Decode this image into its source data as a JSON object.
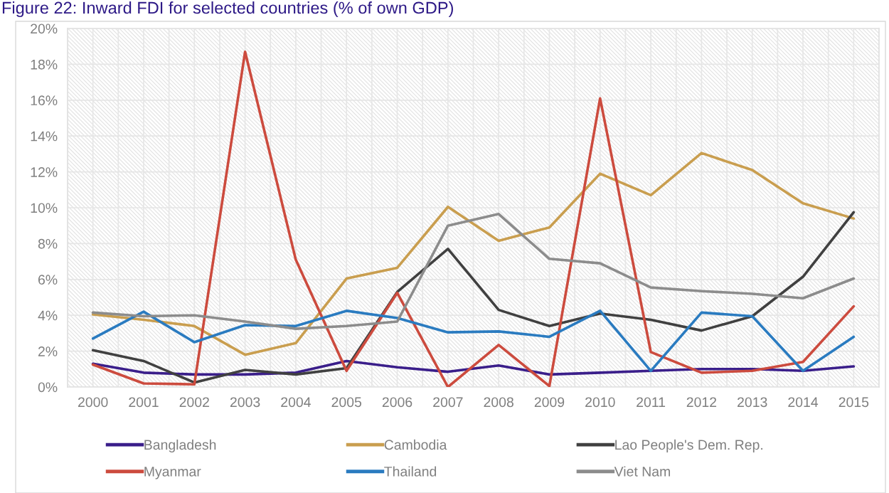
{
  "chart_data": {
    "type": "line",
    "title": "Figure 22: Inward FDI for selected countries (% of own GDP)",
    "categories": [
      "2000",
      "2001",
      "2002",
      "2003",
      "2004",
      "2005",
      "2006",
      "2007",
      "2008",
      "2009",
      "2010",
      "2011",
      "2012",
      "2013",
      "2014",
      "2015"
    ],
    "series": [
      {
        "name": "Bangladesh",
        "color": "#3a1e8a",
        "values": [
          1.3,
          0.8,
          0.7,
          0.7,
          0.8,
          1.45,
          1.1,
          0.85,
          1.2,
          0.7,
          0.8,
          0.9,
          1.0,
          1.0,
          0.9,
          1.15
        ]
      },
      {
        "name": "Cambodia",
        "color": "#c99e4f",
        "values": [
          4.05,
          3.75,
          3.4,
          1.8,
          2.45,
          6.05,
          6.65,
          10.05,
          8.15,
          8.9,
          11.9,
          10.7,
          13.05,
          12.1,
          10.25,
          9.4
        ]
      },
      {
        "name": "Lao People's Dem. Rep.",
        "color": "#404040",
        "values": [
          2.05,
          1.45,
          0.25,
          0.95,
          0.7,
          1.05,
          5.3,
          7.7,
          4.3,
          3.4,
          4.1,
          3.75,
          3.15,
          3.95,
          6.15,
          9.75
        ]
      },
      {
        "name": "Myanmar",
        "color": "#cc4b3e",
        "values": [
          1.25,
          0.2,
          0.15,
          18.7,
          7.1,
          0.9,
          5.25,
          0.0,
          2.35,
          0.05,
          16.1,
          1.95,
          0.8,
          0.9,
          1.4,
          4.5
        ]
      },
      {
        "name": "Thailand",
        "color": "#2a7bc0",
        "values": [
          2.7,
          4.2,
          2.5,
          3.45,
          3.4,
          4.25,
          3.85,
          3.05,
          3.1,
          2.8,
          4.25,
          0.9,
          4.15,
          3.95,
          0.9,
          2.8
        ]
      },
      {
        "name": "Viet Nam",
        "color": "#8c8c8c",
        "values": [
          4.15,
          3.95,
          4.0,
          3.65,
          3.25,
          3.4,
          3.65,
          9.0,
          9.65,
          7.15,
          6.9,
          5.55,
          5.35,
          5.2,
          4.95,
          6.05
        ]
      }
    ],
    "ylim": [
      0,
      20
    ],
    "yticks": [
      {
        "value": 0,
        "label": "0%"
      },
      {
        "value": 2,
        "label": "2%"
      },
      {
        "value": 4,
        "label": "4%"
      },
      {
        "value": 6,
        "label": "6%"
      },
      {
        "value": 8,
        "label": "8%"
      },
      {
        "value": 10,
        "label": "10%"
      },
      {
        "value": 12,
        "label": "12%"
      },
      {
        "value": 14,
        "label": "14%"
      },
      {
        "value": 16,
        "label": "16%"
      },
      {
        "value": 18,
        "label": "18%"
      },
      {
        "value": 20,
        "label": "20%"
      }
    ],
    "grid": true,
    "legend": "bottom",
    "marker": "none",
    "line_style": "solid"
  }
}
